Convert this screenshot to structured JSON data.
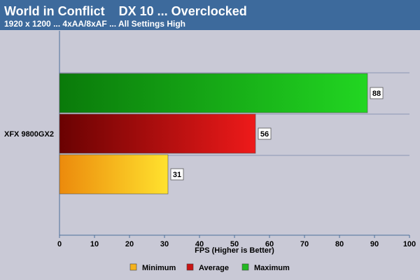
{
  "chart_data": {
    "type": "bar",
    "orientation": "horizontal",
    "title": "World in Conflict    DX 10 ... Overclocked",
    "subtitle": "1920 x 1200 ... 4xAA/8xAF ... All Settings High",
    "categories": [
      "XFX 9800GX2"
    ],
    "series": [
      {
        "name": "Maximum",
        "values": [
          88
        ],
        "color": "#22b822"
      },
      {
        "name": "Average",
        "values": [
          56
        ],
        "color": "#c81414"
      },
      {
        "name": "Minimum",
        "values": [
          31
        ],
        "color": "#f5b21c"
      }
    ],
    "legend_order": [
      "Minimum",
      "Average",
      "Maximum"
    ],
    "xlabel": "FPS (Higher is Better)",
    "ylabel": "",
    "xlim": [
      0,
      100
    ],
    "xticks": [
      0,
      10,
      20,
      30,
      40,
      50,
      60,
      70,
      80,
      90,
      100
    ],
    "grid": "horizontal",
    "legend_position": "bottom",
    "colors": {
      "header": "#3d6a9c",
      "background": "#c9c9d6",
      "axis": "#4a6e9a"
    }
  }
}
